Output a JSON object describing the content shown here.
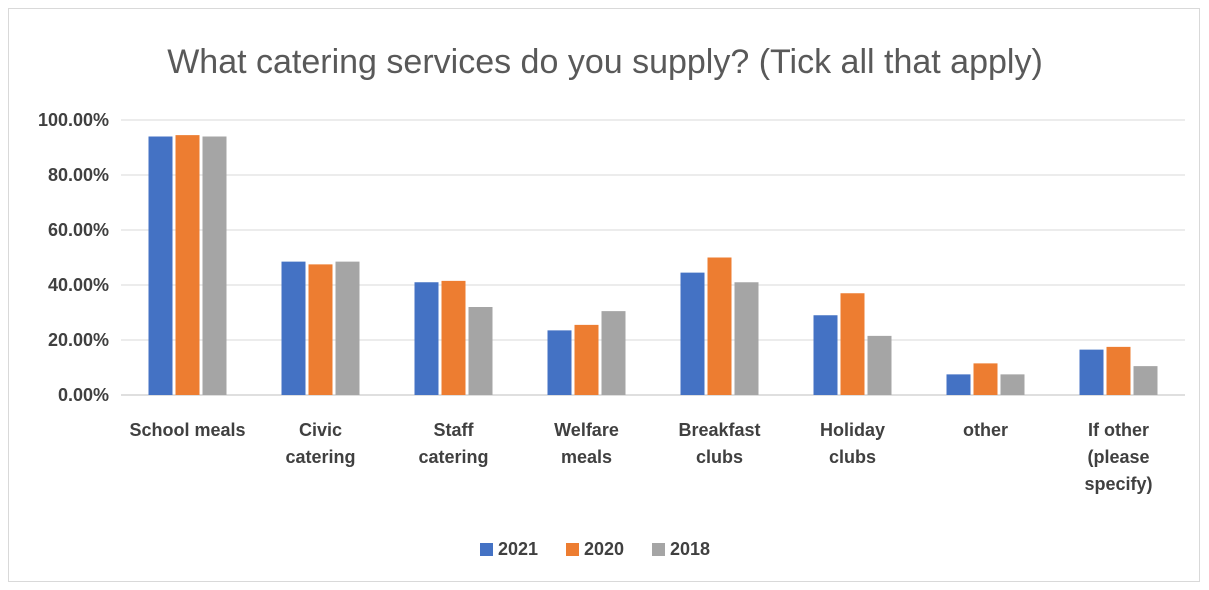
{
  "chart_data": {
    "type": "bar",
    "title": "What catering services do you supply? (Tick all that apply)",
    "xlabel": "",
    "ylabel": "",
    "categories": [
      [
        "School meals"
      ],
      [
        "Civic",
        "catering"
      ],
      [
        "Staff",
        "catering"
      ],
      [
        "Welfare",
        "meals"
      ],
      [
        "Breakfast",
        "clubs"
      ],
      [
        "Holiday",
        "clubs"
      ],
      [
        "other"
      ],
      [
        "If other",
        "(please",
        "specify)"
      ]
    ],
    "series": [
      {
        "name": "2021",
        "color": "#4472c4",
        "values": [
          94,
          48.5,
          41,
          23.5,
          44.5,
          29,
          7.5,
          16.5
        ]
      },
      {
        "name": "2020",
        "color": "#ed7d31",
        "values": [
          94.5,
          47.5,
          41.5,
          25.5,
          50,
          37,
          11.5,
          17.5
        ]
      },
      {
        "name": "2018",
        "color": "#a5a5a5",
        "values": [
          94,
          48.5,
          32,
          30.5,
          41,
          21.5,
          7.5,
          10.5
        ]
      }
    ],
    "ylim": [
      0,
      100
    ],
    "y_ticks": [
      "0.00%",
      "20.00%",
      "40.00%",
      "60.00%",
      "80.00%",
      "100.00%"
    ],
    "y_tick_values": [
      0,
      20,
      40,
      60,
      80,
      100
    ],
    "grid": true,
    "legend_position": "bottom"
  }
}
